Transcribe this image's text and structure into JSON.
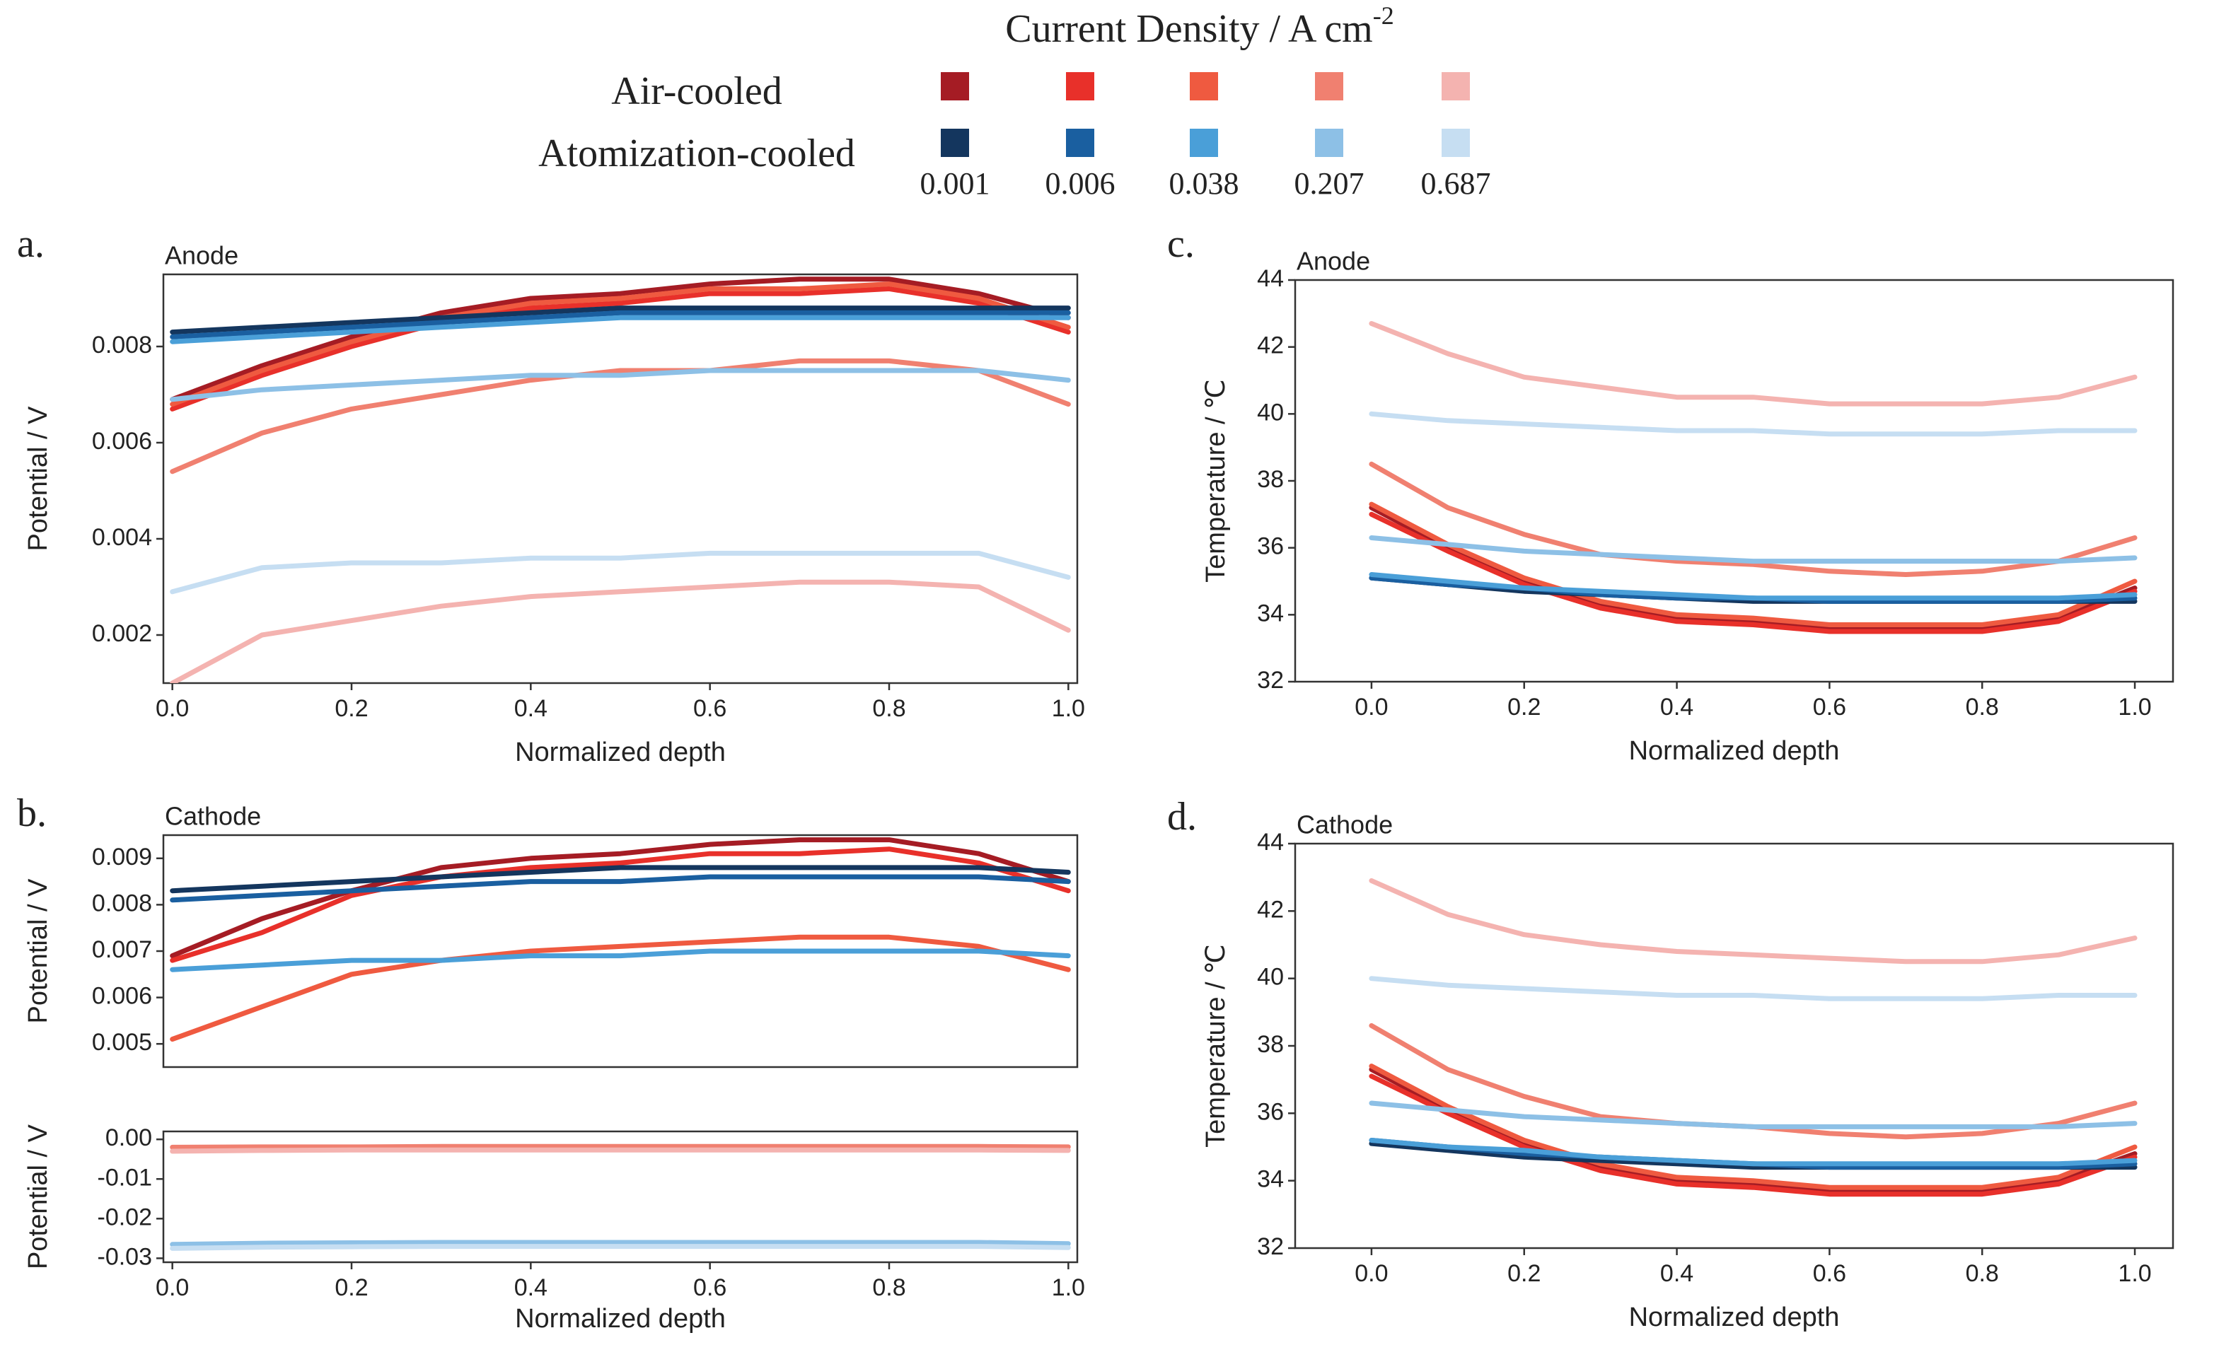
{
  "legend": {
    "title": "Current Density / A cm",
    "title_sup": "-2",
    "rows": [
      {
        "label": "Air-cooled",
        "colors": [
          "#a51c24",
          "#e8302a",
          "#ef5a40",
          "#f08070",
          "#f4b3b0"
        ]
      },
      {
        "label": "Atomization-cooled",
        "colors": [
          "#14365e",
          "#1a5fa0",
          "#4a9fd8",
          "#8dc0e6",
          "#c6def2"
        ]
      }
    ],
    "columns": [
      "0.001",
      "0.006",
      "0.038",
      "0.207",
      "0.687"
    ]
  },
  "chart_data": [
    {
      "type": "line",
      "panel_label": "a.",
      "subtitle": "Anode",
      "x_label": "Normalized depth",
      "y_label": "Potential / V",
      "x": [
        0,
        0.1,
        0.2,
        0.3,
        0.4,
        0.5,
        0.6,
        0.7,
        0.8,
        0.9,
        1.0
      ],
      "xlim": [
        -0.01,
        1.01
      ],
      "xticks": [
        {
          "value": 0,
          "label": "0.0"
        },
        0.2,
        0.4,
        0.6,
        0.8,
        {
          "value": 1,
          "label": "1.0"
        }
      ],
      "ylim": [
        0.001,
        0.0095
      ],
      "yticks": [
        0.002,
        0.004,
        0.006,
        0.008
      ],
      "series": [
        {
          "color": "#a51c24",
          "values": [
            0.0069,
            0.0076,
            0.0082,
            0.0087,
            0.009,
            0.0091,
            0.0093,
            0.0094,
            0.0094,
            0.0091,
            0.0086
          ]
        },
        {
          "color": "#e8302a",
          "values": [
            0.0067,
            0.0074,
            0.008,
            0.0085,
            0.0088,
            0.0089,
            0.0091,
            0.0091,
            0.0092,
            0.0089,
            0.0083
          ]
        },
        {
          "color": "#ef5a40",
          "values": [
            0.0068,
            0.0075,
            0.0081,
            0.0086,
            0.0089,
            0.009,
            0.0092,
            0.0092,
            0.0093,
            0.009,
            0.0084
          ]
        },
        {
          "color": "#f08070",
          "values": [
            0.0054,
            0.0062,
            0.0067,
            0.007,
            0.0073,
            0.0075,
            0.0075,
            0.0077,
            0.0077,
            0.0075,
            0.0068
          ]
        },
        {
          "color": "#f4b3b0",
          "values": [
            0.001,
            0.002,
            0.0023,
            0.0026,
            0.0028,
            0.0029,
            0.003,
            0.0031,
            0.0031,
            0.003,
            0.0021
          ]
        },
        {
          "color": "#14365e",
          "values": [
            0.0083,
            0.0084,
            0.0085,
            0.0086,
            0.0087,
            0.0088,
            0.0088,
            0.0088,
            0.0088,
            0.0088,
            0.0088
          ]
        },
        {
          "color": "#1a5fa0",
          "values": [
            0.0082,
            0.0083,
            0.0084,
            0.0085,
            0.0086,
            0.0087,
            0.0087,
            0.0087,
            0.0087,
            0.0087,
            0.0087
          ]
        },
        {
          "color": "#4a9fd8",
          "values": [
            0.0081,
            0.0082,
            0.0083,
            0.0084,
            0.0085,
            0.0086,
            0.0086,
            0.0086,
            0.0086,
            0.0086,
            0.0086
          ]
        },
        {
          "color": "#8dc0e6",
          "values": [
            0.0069,
            0.0071,
            0.0072,
            0.0073,
            0.0074,
            0.0074,
            0.0075,
            0.0075,
            0.0075,
            0.0075,
            0.0073
          ]
        },
        {
          "color": "#c6def2",
          "values": [
            0.0029,
            0.0034,
            0.0035,
            0.0035,
            0.0036,
            0.0036,
            0.0037,
            0.0037,
            0.0037,
            0.0037,
            0.0032
          ]
        }
      ]
    },
    {
      "type": "line",
      "panel_label": "b.",
      "subtitle": "Cathode",
      "y_label": "Potential / V",
      "x": [
        0,
        0.1,
        0.2,
        0.3,
        0.4,
        0.5,
        0.6,
        0.7,
        0.8,
        0.9,
        1.0
      ],
      "xlim": [
        -0.01,
        1.01
      ],
      "ylim": [
        0.0045,
        0.0095
      ],
      "yticks": [
        0.005,
        0.006,
        0.007,
        0.008,
        0.009
      ],
      "series": [
        {
          "color": "#a51c24",
          "values": [
            0.0069,
            0.0077,
            0.0083,
            0.0088,
            0.009,
            0.0091,
            0.0093,
            0.0094,
            0.0094,
            0.0091,
            0.0085
          ]
        },
        {
          "color": "#e8302a",
          "values": [
            0.0068,
            0.0074,
            0.0082,
            0.0086,
            0.0088,
            0.0089,
            0.0091,
            0.0091,
            0.0092,
            0.0089,
            0.0083
          ]
        },
        {
          "color": "#ef5a40",
          "values": [
            0.0051,
            0.0058,
            0.0065,
            0.0068,
            0.007,
            0.0071,
            0.0072,
            0.0073,
            0.0073,
            0.0071,
            0.0066
          ]
        },
        {
          "color": "#14365e",
          "values": [
            0.0083,
            0.0084,
            0.0085,
            0.0086,
            0.0087,
            0.0088,
            0.0088,
            0.0088,
            0.0088,
            0.0088,
            0.0087
          ]
        },
        {
          "color": "#1a5fa0",
          "values": [
            0.0081,
            0.0082,
            0.0083,
            0.0084,
            0.0085,
            0.0085,
            0.0086,
            0.0086,
            0.0086,
            0.0086,
            0.0085
          ]
        },
        {
          "color": "#4a9fd8",
          "values": [
            0.0066,
            0.0067,
            0.0068,
            0.0068,
            0.0069,
            0.0069,
            0.007,
            0.007,
            0.007,
            0.007,
            0.0069
          ]
        }
      ]
    },
    {
      "type": "line",
      "x_label": "Normalized depth",
      "y_label": "Potential / V",
      "x": [
        0,
        0.1,
        0.2,
        0.3,
        0.4,
        0.5,
        0.6,
        0.7,
        0.8,
        0.9,
        1.0
      ],
      "xlim": [
        -0.01,
        1.01
      ],
      "xticks": [
        {
          "value": 0,
          "label": "0.0"
        },
        0.2,
        0.4,
        0.6,
        0.8,
        {
          "value": 1,
          "label": "1.0"
        }
      ],
      "ylim": [
        -0.031,
        0.002
      ],
      "yticks": [
        {
          "value": 0,
          "label": "0.00"
        },
        {
          "value": -0.01,
          "label": "-0.01"
        },
        {
          "value": -0.02,
          "label": "-0.02"
        },
        {
          "value": -0.03,
          "label": "-0.03"
        }
      ],
      "series": [
        {
          "color": "#f08070",
          "values": [
            -0.002,
            -0.0019,
            -0.0019,
            -0.0018,
            -0.0018,
            -0.0018,
            -0.0018,
            -0.0018,
            -0.0018,
            -0.0018,
            -0.0019
          ]
        },
        {
          "color": "#f4b3b0",
          "values": [
            -0.003,
            -0.0028,
            -0.0027,
            -0.0027,
            -0.0027,
            -0.0027,
            -0.0027,
            -0.0027,
            -0.0027,
            -0.0027,
            -0.0028
          ]
        },
        {
          "color": "#8dc0e6",
          "values": [
            -0.0265,
            -0.0262,
            -0.0261,
            -0.026,
            -0.026,
            -0.026,
            -0.026,
            -0.026,
            -0.026,
            -0.026,
            -0.0263
          ]
        },
        {
          "color": "#c6def2",
          "values": [
            -0.0275,
            -0.0272,
            -0.0271,
            -0.027,
            -0.027,
            -0.027,
            -0.027,
            -0.027,
            -0.027,
            -0.027,
            -0.0273
          ]
        }
      ]
    },
    {
      "type": "line",
      "panel_label": "c.",
      "subtitle": "Anode",
      "x_label": "Normalized depth",
      "y_label": "Temperature / ℃",
      "x": [
        0,
        0.1,
        0.2,
        0.3,
        0.4,
        0.5,
        0.6,
        0.7,
        0.8,
        0.9,
        1.0
      ],
      "xlim": [
        -0.1,
        1.05
      ],
      "xticks": [
        {
          "value": 0,
          "label": "0.0"
        },
        0.2,
        0.4,
        0.6,
        0.8,
        {
          "value": 1,
          "label": "1.0"
        }
      ],
      "ylim": [
        32,
        44
      ],
      "yticks": [
        32,
        34,
        36,
        38,
        40,
        42,
        44
      ],
      "series": [
        {
          "color": "#a51c24",
          "values": [
            37.2,
            36.0,
            35.0,
            34.3,
            33.9,
            33.8,
            33.6,
            33.6,
            33.6,
            33.9,
            34.8
          ]
        },
        {
          "color": "#e8302a",
          "values": [
            37.0,
            35.9,
            34.9,
            34.2,
            33.8,
            33.7,
            33.5,
            33.5,
            33.5,
            33.8,
            34.7
          ]
        },
        {
          "color": "#ef5a40",
          "values": [
            37.3,
            36.1,
            35.1,
            34.4,
            34.0,
            33.9,
            33.7,
            33.7,
            33.7,
            34.0,
            35.0
          ]
        },
        {
          "color": "#f08070",
          "values": [
            38.5,
            37.2,
            36.4,
            35.8,
            35.6,
            35.5,
            35.3,
            35.2,
            35.3,
            35.6,
            36.3
          ]
        },
        {
          "color": "#f4b3b0",
          "values": [
            42.7,
            41.8,
            41.1,
            40.8,
            40.5,
            40.5,
            40.3,
            40.3,
            40.3,
            40.5,
            41.1
          ]
        },
        {
          "color": "#14365e",
          "values": [
            35.1,
            34.9,
            34.7,
            34.6,
            34.5,
            34.4,
            34.4,
            34.4,
            34.4,
            34.4,
            34.4
          ]
        },
        {
          "color": "#1a5fa0",
          "values": [
            35.1,
            34.9,
            34.8,
            34.6,
            34.5,
            34.5,
            34.4,
            34.4,
            34.4,
            34.4,
            34.5
          ]
        },
        {
          "color": "#4a9fd8",
          "values": [
            35.2,
            35.0,
            34.8,
            34.7,
            34.6,
            34.5,
            34.5,
            34.5,
            34.5,
            34.5,
            34.6
          ]
        },
        {
          "color": "#8dc0e6",
          "values": [
            36.3,
            36.1,
            35.9,
            35.8,
            35.7,
            35.6,
            35.6,
            35.6,
            35.6,
            35.6,
            35.7
          ]
        },
        {
          "color": "#c6def2",
          "values": [
            40.0,
            39.8,
            39.7,
            39.6,
            39.5,
            39.5,
            39.4,
            39.4,
            39.4,
            39.5,
            39.5
          ]
        }
      ]
    },
    {
      "type": "line",
      "panel_label": "d.",
      "subtitle": "Cathode",
      "x_label": "Normalized depth",
      "y_label": "Temperature / ℃",
      "x": [
        0,
        0.1,
        0.2,
        0.3,
        0.4,
        0.5,
        0.6,
        0.7,
        0.8,
        0.9,
        1.0
      ],
      "xlim": [
        -0.1,
        1.05
      ],
      "xticks": [
        {
          "value": 0,
          "label": "0.0"
        },
        0.2,
        0.4,
        0.6,
        0.8,
        {
          "value": 1,
          "label": "1.0"
        }
      ],
      "ylim": [
        32,
        44
      ],
      "yticks": [
        32,
        34,
        36,
        38,
        40,
        42,
        44
      ],
      "series": [
        {
          "color": "#a51c24",
          "values": [
            37.3,
            36.1,
            35.1,
            34.4,
            34.0,
            33.9,
            33.7,
            33.7,
            33.7,
            34.0,
            34.8
          ]
        },
        {
          "color": "#e8302a",
          "values": [
            37.1,
            36.0,
            35.0,
            34.3,
            33.9,
            33.8,
            33.6,
            33.6,
            33.6,
            33.9,
            34.7
          ]
        },
        {
          "color": "#ef5a40",
          "values": [
            37.4,
            36.2,
            35.2,
            34.5,
            34.1,
            34.0,
            33.8,
            33.8,
            33.8,
            34.1,
            35.0
          ]
        },
        {
          "color": "#f08070",
          "values": [
            38.6,
            37.3,
            36.5,
            35.9,
            35.7,
            35.6,
            35.4,
            35.3,
            35.4,
            35.7,
            36.3
          ]
        },
        {
          "color": "#f4b3b0",
          "values": [
            42.9,
            41.9,
            41.3,
            41.0,
            40.8,
            40.7,
            40.6,
            40.5,
            40.5,
            40.7,
            41.2
          ]
        },
        {
          "color": "#14365e",
          "values": [
            35.1,
            34.9,
            34.7,
            34.6,
            34.5,
            34.4,
            34.4,
            34.4,
            34.4,
            34.4,
            34.4
          ]
        },
        {
          "color": "#1a5fa0",
          "values": [
            35.2,
            35.0,
            34.8,
            34.7,
            34.6,
            34.5,
            34.4,
            34.4,
            34.4,
            34.4,
            34.5
          ]
        },
        {
          "color": "#4a9fd8",
          "values": [
            35.2,
            35.0,
            34.9,
            34.7,
            34.6,
            34.5,
            34.5,
            34.5,
            34.5,
            34.5,
            34.6
          ]
        },
        {
          "color": "#8dc0e6",
          "values": [
            36.3,
            36.1,
            35.9,
            35.8,
            35.7,
            35.6,
            35.6,
            35.6,
            35.6,
            35.6,
            35.7
          ]
        },
        {
          "color": "#c6def2",
          "values": [
            40.0,
            39.8,
            39.7,
            39.6,
            39.5,
            39.5,
            39.4,
            39.4,
            39.4,
            39.5,
            39.5
          ]
        }
      ]
    }
  ]
}
